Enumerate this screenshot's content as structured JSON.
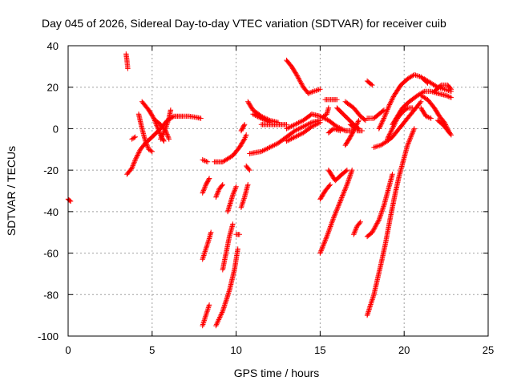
{
  "chart_data": {
    "type": "scatter",
    "title": "Day 045 of 2026, Sidereal Day-to-day VTEC variation (SDTVAR) for receiver cuib",
    "xlabel": "GPS time / hours",
    "ylabel": "SDTVAR / TECUs",
    "xlim": [
      0,
      25
    ],
    "ylim": [
      -100,
      40
    ],
    "xticks": [
      0,
      5,
      10,
      15,
      20,
      25
    ],
    "yticks": [
      -100,
      -80,
      -60,
      -40,
      -20,
      0,
      20,
      40
    ],
    "xtick_labels": [
      "0",
      "5",
      "10",
      "15",
      "20",
      "25"
    ],
    "ytick_labels": [
      "-100",
      "-80",
      "-60",
      "-40",
      "-20",
      "0",
      "20",
      "40"
    ],
    "grid": true,
    "marker": "plus",
    "colors": {
      "series": "#ff0000",
      "grid": "#a0a0a0",
      "axis": "#000000"
    },
    "segments": [
      [
        [
          0.0,
          -34
        ],
        [
          0.15,
          -35
        ]
      ],
      [
        [
          3.45,
          36
        ],
        [
          3.5,
          33
        ],
        [
          3.55,
          29
        ]
      ],
      [
        [
          3.5,
          -22
        ],
        [
          3.8,
          -19
        ],
        [
          4.0,
          -15
        ],
        [
          4.3,
          -10
        ],
        [
          4.6,
          -7
        ],
        [
          5.0,
          -4
        ],
        [
          5.5,
          0
        ],
        [
          5.9,
          4
        ],
        [
          6.3,
          6
        ],
        [
          6.8,
          6
        ],
        [
          7.2,
          6
        ],
        [
          7.6,
          5.5
        ],
        [
          7.9,
          5
        ]
      ],
      [
        [
          3.8,
          -5
        ],
        [
          4.0,
          -4
        ]
      ],
      [
        [
          4.2,
          7
        ],
        [
          4.4,
          0
        ],
        [
          4.6,
          -6
        ],
        [
          4.8,
          -10
        ],
        [
          5.0,
          -11
        ]
      ],
      [
        [
          4.4,
          13
        ],
        [
          4.8,
          9
        ],
        [
          5.1,
          5
        ],
        [
          5.3,
          1
        ],
        [
          5.5,
          -3
        ],
        [
          5.7,
          -6
        ]
      ],
      [
        [
          5.2,
          4
        ],
        [
          5.5,
          2
        ],
        [
          5.8,
          -1
        ],
        [
          6.0,
          -5
        ]
      ],
      [
        [
          5.5,
          -5
        ],
        [
          5.8,
          0
        ],
        [
          6.0,
          5
        ],
        [
          6.1,
          9
        ]
      ],
      [
        [
          8.0,
          -15
        ],
        [
          8.3,
          -16
        ]
      ],
      [
        [
          8.0,
          -31
        ],
        [
          8.2,
          -27
        ],
        [
          8.4,
          -24
        ]
      ],
      [
        [
          8.0,
          -63
        ],
        [
          8.2,
          -58
        ],
        [
          8.4,
          -53
        ],
        [
          8.5,
          -50
        ]
      ],
      [
        [
          8.0,
          -95
        ],
        [
          8.2,
          -90
        ],
        [
          8.4,
          -85
        ]
      ],
      [
        [
          8.7,
          -16
        ],
        [
          9.2,
          -16
        ],
        [
          9.8,
          -13
        ],
        [
          10.2,
          -9
        ],
        [
          10.5,
          -5
        ],
        [
          10.6,
          -3
        ]
      ],
      [
        [
          8.8,
          -33
        ],
        [
          9.0,
          -29
        ],
        [
          9.2,
          -27
        ]
      ],
      [
        [
          9.2,
          -68
        ],
        [
          9.4,
          -60
        ],
        [
          9.6,
          -52
        ],
        [
          9.8,
          -46
        ]
      ],
      [
        [
          8.8,
          -95
        ],
        [
          9.2,
          -88
        ],
        [
          9.6,
          -78
        ],
        [
          9.9,
          -68
        ],
        [
          10.1,
          -58
        ]
      ],
      [
        [
          9.5,
          -40
        ],
        [
          9.8,
          -32
        ],
        [
          10.0,
          -28
        ]
      ],
      [
        [
          10.0,
          -51
        ],
        [
          10.2,
          -51
        ]
      ],
      [
        [
          10.3,
          -1
        ],
        [
          10.5,
          2
        ]
      ],
      [
        [
          10.3,
          -38
        ],
        [
          10.5,
          -33
        ],
        [
          10.7,
          -27
        ]
      ],
      [
        [
          10.6,
          -18
        ],
        [
          10.8,
          -20
        ]
      ],
      [
        [
          10.7,
          13
        ],
        [
          11.0,
          9
        ],
        [
          11.5,
          6
        ],
        [
          12.0,
          4
        ],
        [
          12.5,
          3
        ]
      ],
      [
        [
          10.8,
          -12
        ],
        [
          11.5,
          -11
        ],
        [
          12.0,
          -9
        ],
        [
          12.5,
          -7
        ],
        [
          13.0,
          -4
        ],
        [
          13.5,
          -1
        ],
        [
          14.0,
          1
        ],
        [
          14.5,
          3
        ],
        [
          15.0,
          4
        ]
      ],
      [
        [
          11.0,
          7
        ],
        [
          11.5,
          5
        ],
        [
          12.0,
          3
        ]
      ],
      [
        [
          11.5,
          2
        ],
        [
          12.0,
          2
        ],
        [
          12.5,
          2
        ],
        [
          13.0,
          2
        ]
      ],
      [
        [
          13.0,
          33
        ],
        [
          13.3,
          30
        ],
        [
          13.6,
          26
        ],
        [
          14.0,
          20
        ],
        [
          14.3,
          17
        ],
        [
          14.6,
          18
        ],
        [
          15.0,
          19
        ]
      ],
      [
        [
          13.0,
          -6
        ],
        [
          13.5,
          -4
        ],
        [
          14.0,
          -2
        ],
        [
          14.5,
          1
        ],
        [
          15.0,
          3
        ]
      ],
      [
        [
          13.0,
          0
        ],
        [
          13.5,
          2
        ],
        [
          14.0,
          4
        ],
        [
          14.5,
          7
        ],
        [
          15.0,
          6
        ],
        [
          15.5,
          4
        ],
        [
          16.0,
          1
        ],
        [
          16.5,
          -1
        ],
        [
          17.0,
          -1
        ]
      ],
      [
        [
          15.0,
          -34
        ],
        [
          15.3,
          -30
        ],
        [
          15.6,
          -27
        ]
      ],
      [
        [
          15.0,
          -60
        ],
        [
          15.4,
          -52
        ],
        [
          15.8,
          -43
        ],
        [
          16.2,
          -35
        ],
        [
          16.6,
          -27
        ],
        [
          16.9,
          -20
        ]
      ],
      [
        [
          15.2,
          6
        ],
        [
          15.4,
          7
        ],
        [
          15.5,
          10
        ]
      ],
      [
        [
          15.3,
          14
        ],
        [
          15.7,
          14
        ],
        [
          16.0,
          14
        ]
      ],
      [
        [
          15.5,
          -2
        ],
        [
          15.8,
          0
        ],
        [
          16.2,
          -1
        ]
      ],
      [
        [
          15.5,
          -20
        ],
        [
          15.9,
          -25
        ],
        [
          16.3,
          -22
        ],
        [
          16.6,
          -20
        ]
      ],
      [
        [
          16.0,
          10
        ],
        [
          16.5,
          6
        ],
        [
          17.0,
          2
        ],
        [
          17.3,
          0
        ]
      ],
      [
        [
          16.5,
          -8
        ],
        [
          16.8,
          -4
        ],
        [
          17.0,
          -1
        ],
        [
          17.3,
          4
        ]
      ],
      [
        [
          16.5,
          13
        ],
        [
          17.0,
          10
        ],
        [
          17.4,
          6
        ],
        [
          17.7,
          4
        ]
      ],
      [
        [
          16.8,
          2
        ],
        [
          17.1,
          0
        ]
      ],
      [
        [
          17.0,
          -51
        ],
        [
          17.2,
          -47
        ],
        [
          17.4,
          -45
        ]
      ],
      [
        [
          17.2,
          -1
        ],
        [
          17.5,
          -1
        ]
      ],
      [
        [
          17.8,
          23
        ],
        [
          18.1,
          21
        ]
      ],
      [
        [
          17.8,
          5
        ],
        [
          18.2,
          5
        ],
        [
          18.5,
          7
        ],
        [
          18.8,
          9
        ]
      ],
      [
        [
          17.8,
          -90
        ],
        [
          18.2,
          -80
        ],
        [
          18.6,
          -66
        ],
        [
          18.9,
          -55
        ],
        [
          19.2,
          -42
        ],
        [
          19.5,
          -30
        ],
        [
          19.7,
          -23
        ],
        [
          20.0,
          -14
        ],
        [
          20.2,
          -8
        ],
        [
          20.4,
          -4
        ],
        [
          20.6,
          0
        ]
      ],
      [
        [
          17.8,
          -52
        ],
        [
          18.1,
          -50
        ],
        [
          18.5,
          -44
        ],
        [
          18.8,
          -37
        ],
        [
          19.1,
          -28
        ],
        [
          19.3,
          -22
        ]
      ],
      [
        [
          18.2,
          -9
        ],
        [
          18.6,
          -8
        ],
        [
          19.0,
          -6
        ],
        [
          19.3,
          -4
        ],
        [
          19.6,
          -1
        ],
        [
          19.9,
          2
        ],
        [
          20.2,
          5
        ],
        [
          20.5,
          8
        ],
        [
          20.8,
          11
        ],
        [
          21.0,
          13
        ]
      ],
      [
        [
          18.5,
          0
        ],
        [
          18.8,
          5
        ],
        [
          19.1,
          11
        ],
        [
          19.4,
          16
        ],
        [
          19.8,
          21
        ],
        [
          20.2,
          24
        ],
        [
          20.6,
          26
        ],
        [
          21.0,
          25
        ],
        [
          21.4,
          22
        ]
      ],
      [
        [
          19.0,
          -5
        ],
        [
          19.3,
          0
        ],
        [
          19.6,
          5
        ],
        [
          19.9,
          8
        ],
        [
          20.2,
          10
        ],
        [
          20.5,
          10
        ]
      ],
      [
        [
          19.3,
          2
        ],
        [
          19.6,
          6
        ],
        [
          19.9,
          10
        ],
        [
          20.3,
          13
        ],
        [
          20.8,
          16
        ],
        [
          21.2,
          18
        ],
        [
          21.6,
          18
        ],
        [
          22.0,
          17
        ],
        [
          22.5,
          16
        ],
        [
          22.8,
          15
        ]
      ],
      [
        [
          21.0,
          10
        ],
        [
          21.3,
          6
        ],
        [
          21.6,
          5
        ]
      ],
      [
        [
          21.0,
          16
        ],
        [
          21.4,
          14
        ],
        [
          21.8,
          10
        ],
        [
          22.1,
          6
        ],
        [
          22.4,
          3
        ],
        [
          22.7,
          -2
        ]
      ],
      [
        [
          21.2,
          24
        ],
        [
          21.6,
          22
        ],
        [
          22.0,
          20
        ],
        [
          22.4,
          19
        ],
        [
          22.8,
          18
        ]
      ],
      [
        [
          21.8,
          18
        ],
        [
          22.2,
          21
        ],
        [
          22.6,
          21
        ],
        [
          22.8,
          19
        ]
      ],
      [
        [
          22.0,
          4
        ],
        [
          22.3,
          2
        ],
        [
          22.6,
          -1
        ],
        [
          22.8,
          -3
        ]
      ]
    ]
  }
}
